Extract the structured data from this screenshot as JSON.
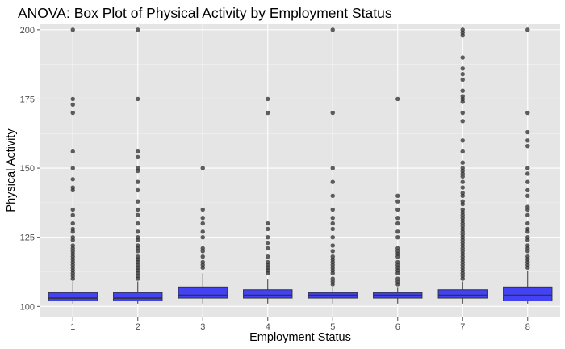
{
  "chart_data": {
    "type": "box",
    "title": "ANOVA: Box Plot of Physical Activity by Employment Status",
    "xlabel": "Employment Status",
    "ylabel": "Physical Activity",
    "categories": [
      "1",
      "2",
      "3",
      "4",
      "5",
      "6",
      "7",
      "8"
    ],
    "y_ticks": [
      100,
      125,
      150,
      175,
      200
    ],
    "ylim": [
      96,
      202
    ],
    "grid": true,
    "colors": {
      "panel": "#e5e5e5",
      "grid_major": "#ffffff",
      "box_fill": "#4343f5",
      "box_line": "#333333",
      "outlier": "#333333",
      "tick": "#4d4d4d"
    },
    "boxes": [
      {
        "category": "1",
        "whisker_low": 101,
        "q1": 102,
        "median": 103,
        "q3": 105,
        "whisker_high": 109,
        "outliers": [
          200,
          175,
          173,
          170,
          156,
          150,
          146,
          143,
          142,
          135,
          133,
          130,
          128,
          127,
          125,
          124,
          122,
          121,
          120,
          119,
          118,
          117,
          116,
          115,
          114,
          113,
          112,
          111,
          110
        ]
      },
      {
        "category": "2",
        "whisker_low": 101,
        "q1": 102,
        "median": 103,
        "q3": 105,
        "whisker_high": 109,
        "outliers": [
          200,
          175,
          156,
          154,
          150,
          149,
          145,
          142,
          138,
          135,
          133,
          130,
          127,
          125,
          124,
          122,
          121,
          120,
          118,
          117,
          116,
          115,
          114,
          113,
          112,
          111,
          110
        ]
      },
      {
        "category": "3",
        "whisker_low": 101,
        "q1": 103,
        "median": 104,
        "q3": 107,
        "whisker_high": 112,
        "outliers": [
          150,
          135,
          132,
          130,
          127,
          125,
          121,
          120,
          118,
          116,
          115,
          114
        ]
      },
      {
        "category": "4",
        "whisker_low": 101,
        "q1": 103,
        "median": 104,
        "q3": 106,
        "whisker_high": 110,
        "outliers": [
          175,
          170,
          130,
          128,
          125,
          123,
          121,
          118,
          116,
          115,
          114,
          113,
          112
        ]
      },
      {
        "category": "5",
        "whisker_low": 101,
        "q1": 103,
        "median": 104,
        "q3": 105,
        "whisker_high": 107,
        "outliers": [
          200,
          170,
          150,
          145,
          140,
          135,
          132,
          130,
          128,
          125,
          122,
          120,
          118,
          117,
          116,
          115,
          114,
          113,
          112,
          110,
          109,
          108
        ]
      },
      {
        "category": "6",
        "whisker_low": 101,
        "q1": 103,
        "median": 104,
        "q3": 105,
        "whisker_high": 107,
        "outliers": [
          175,
          140,
          138,
          135,
          132,
          130,
          127,
          125,
          121,
          120,
          119,
          118,
          116,
          115,
          114,
          113,
          112,
          110,
          109,
          108
        ]
      },
      {
        "category": "7",
        "whisker_low": 101,
        "q1": 103,
        "median": 104,
        "q3": 106,
        "whisker_high": 109,
        "outliers": [
          200,
          199,
          198,
          190,
          186,
          184,
          182,
          178,
          176,
          175,
          174,
          170,
          167,
          160,
          156,
          152,
          150,
          149,
          148,
          147,
          145,
          143,
          141,
          140,
          138,
          137,
          135,
          134,
          133,
          132,
          131,
          130,
          129,
          128,
          127,
          126,
          125,
          124,
          123,
          122,
          121,
          120,
          119,
          118,
          117,
          116,
          115,
          114,
          113,
          112,
          111,
          110
        ]
      },
      {
        "category": "8",
        "whisker_low": 101,
        "q1": 102,
        "median": 104,
        "q3": 107,
        "whisker_high": 113,
        "outliers": [
          200,
          170,
          163,
          160,
          158,
          150,
          148,
          145,
          142,
          140,
          136,
          135,
          133,
          130,
          128,
          127,
          125,
          124,
          122,
          121,
          120,
          118,
          117,
          116,
          115,
          114
        ]
      }
    ]
  }
}
